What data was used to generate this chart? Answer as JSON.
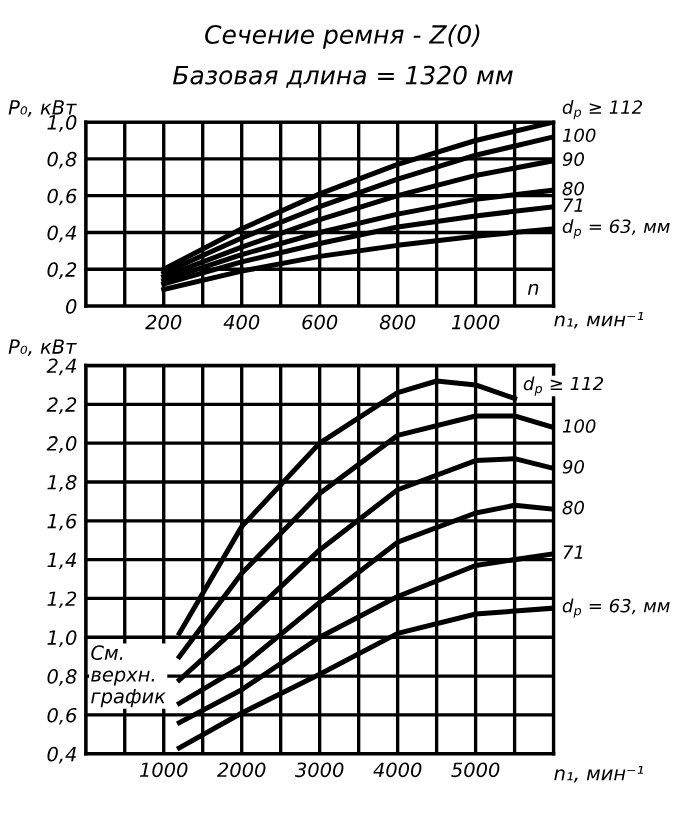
{
  "chart_data": [
    {
      "type": "line",
      "title": "Сечение ремня - Z(0)",
      "subtitle": "Базовая длина = 1320 мм",
      "ylabel": "P₀, кВт",
      "xlabel": "n₁, мин⁻¹",
      "annotations": [
        "n"
      ],
      "xlim": [
        0,
        1200
      ],
      "xticks": [
        {
          "value": 0,
          "label": null
        },
        {
          "value": 100,
          "label": null
        },
        200,
        {
          "value": 300,
          "label": null
        },
        400,
        {
          "value": 500,
          "label": null
        },
        600,
        {
          "value": 700,
          "label": null
        },
        800,
        {
          "value": 900,
          "label": null
        },
        1000,
        {
          "value": 1100,
          "label": null
        },
        {
          "value": 1200,
          "label": null
        }
      ],
      "ylim": [
        0,
        1.0
      ],
      "yticks": [
        {
          "value": 0,
          "label": "0"
        },
        {
          "value": 0.2,
          "label": "0,2"
        },
        {
          "value": 0.4,
          "label": "0,4"
        },
        {
          "value": 0.6,
          "label": "0,6"
        },
        {
          "value": 0.8,
          "label": "0,8"
        },
        {
          "value": 1.0,
          "label": "1,0"
        }
      ],
      "grid": true,
      "legend": false,
      "marker": "none",
      "line_style": "solid",
      "x": [
        200,
        400,
        600,
        800,
        1000,
        1200
      ],
      "series": [
        {
          "name": "d$_{p}$ ≥ 112",
          "color": "#000000",
          "values": [
            0.2,
            0.42,
            0.61,
            0.77,
            0.9,
            1.0
          ]
        },
        {
          "name": "100",
          "color": "#000000",
          "values": [
            0.18,
            0.37,
            0.54,
            0.69,
            0.82,
            0.92
          ]
        },
        {
          "name": "90",
          "color": "#000000",
          "values": [
            0.16,
            0.32,
            0.47,
            0.6,
            0.71,
            0.79
          ]
        },
        {
          "name": "80",
          "color": "#000000",
          "values": [
            0.14,
            0.28,
            0.4,
            0.5,
            0.58,
            0.63
          ]
        },
        {
          "name": "71",
          "color": "#000000",
          "values": [
            0.12,
            0.24,
            0.34,
            0.43,
            0.49,
            0.54
          ]
        },
        {
          "name": "d$_{p}$ = 63, мм",
          "color": "#000000",
          "values": [
            0.09,
            0.19,
            0.27,
            0.33,
            0.38,
            0.42
          ]
        }
      ]
    },
    {
      "type": "line",
      "ylabel": "P₀, кВт",
      "xlabel": "n₁, мин⁻¹",
      "annotations": [
        "См.\nверхн.\nграфик"
      ],
      "xlim": [
        0,
        6000
      ],
      "xticks": [
        {
          "value": 0,
          "label": null
        },
        {
          "value": 500,
          "label": null
        },
        1000,
        {
          "value": 1500,
          "label": null
        },
        2000,
        {
          "value": 2500,
          "label": null
        },
        3000,
        {
          "value": 3500,
          "label": null
        },
        4000,
        {
          "value": 4500,
          "label": null
        },
        5000,
        {
          "value": 5500,
          "label": null
        },
        {
          "value": 6000,
          "label": null
        }
      ],
      "ylim": [
        0.4,
        2.4
      ],
      "yticks": [
        {
          "value": 0.4,
          "label": "0,4"
        },
        {
          "value": 0.6,
          "label": "0,6"
        },
        {
          "value": 0.8,
          "label": "0,8"
        },
        {
          "value": 1.0,
          "label": "1,0"
        },
        {
          "value": 1.2,
          "label": "1,2"
        },
        {
          "value": 1.4,
          "label": "1,4"
        },
        {
          "value": 1.6,
          "label": "1,6"
        },
        {
          "value": 1.8,
          "label": "1,8"
        },
        {
          "value": 2.0,
          "label": "2,0"
        },
        {
          "value": 2.2,
          "label": "2,2"
        },
        {
          "value": 2.4,
          "label": "2,4"
        }
      ],
      "grid": true,
      "legend": false,
      "marker": "none",
      "line_style": "solid",
      "series": [
        {
          "name": "d$_{p}$ ≥ 112",
          "color": "#000000",
          "x": [
            1200,
            2000,
            3000,
            4000,
            4500,
            5000,
            5500
          ],
          "values": [
            1.02,
            1.57,
            2.0,
            2.26,
            2.32,
            2.3,
            2.23
          ]
        },
        {
          "name": "100",
          "color": "#000000",
          "x": [
            1200,
            2000,
            3000,
            4000,
            5000,
            5500,
            6000
          ],
          "values": [
            0.9,
            1.33,
            1.74,
            2.04,
            2.14,
            2.14,
            2.08
          ]
        },
        {
          "name": "90",
          "color": "#000000",
          "x": [
            1200,
            2000,
            3000,
            4000,
            5000,
            5500,
            6000
          ],
          "values": [
            0.78,
            1.07,
            1.45,
            1.76,
            1.91,
            1.92,
            1.87
          ]
        },
        {
          "name": "80",
          "color": "#000000",
          "x": [
            1200,
            2000,
            3000,
            4000,
            5000,
            5500,
            6000
          ],
          "values": [
            0.66,
            0.85,
            1.18,
            1.49,
            1.64,
            1.68,
            1.66
          ]
        },
        {
          "name": "71",
          "color": "#000000",
          "x": [
            1200,
            2000,
            3000,
            4000,
            5000,
            6000
          ],
          "values": [
            0.56,
            0.73,
            1.0,
            1.21,
            1.37,
            1.43
          ]
        },
        {
          "name": "d$_{p}$ = 63, мм",
          "color": "#000000",
          "x": [
            1200,
            2000,
            3000,
            4000,
            5000,
            6000
          ],
          "values": [
            0.43,
            0.61,
            0.81,
            1.02,
            1.12,
            1.15
          ]
        }
      ]
    }
  ]
}
